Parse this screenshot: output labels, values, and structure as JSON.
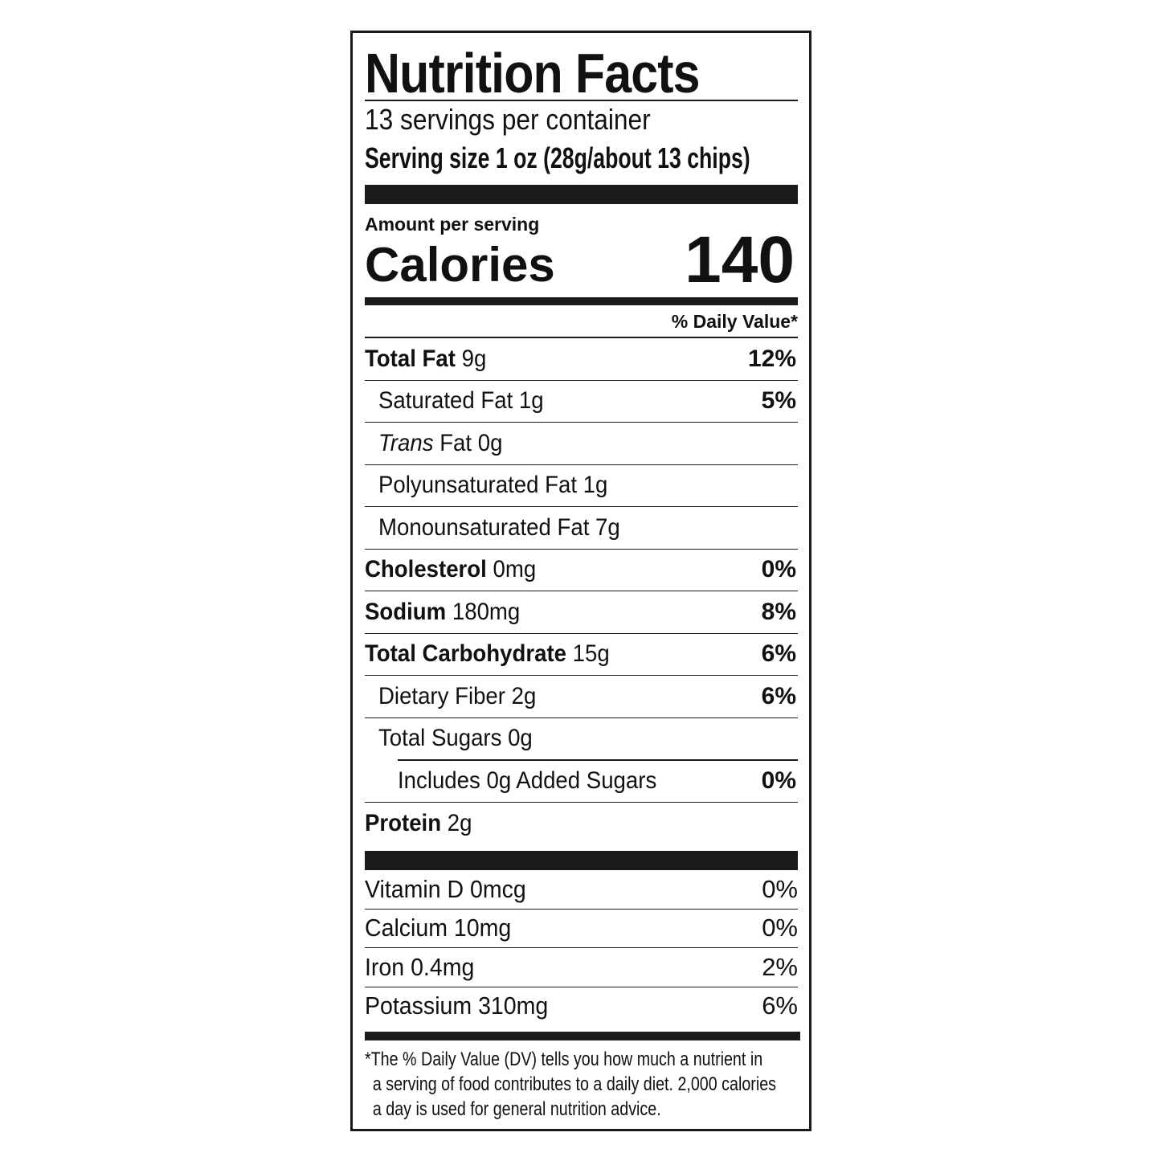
{
  "title": "Nutrition Facts",
  "servings_per_container": "13 servings per container",
  "serving_size": "Serving size 1 oz (28g/about 13 chips)",
  "amount_per_serving": "Amount per serving",
  "calories_label": "Calories",
  "calories_value": "140",
  "daily_value_header": "% Daily Value*",
  "nutrients": [
    {
      "name": "Total Fat",
      "amount": "9g",
      "dv": "12%"
    },
    {
      "name": "Saturated Fat",
      "amount": "1g",
      "dv": "5%"
    },
    {
      "name": "Trans",
      "suffix": "Fat 0g",
      "dv": ""
    },
    {
      "name": "Polyunsaturated Fat 1g",
      "dv": ""
    },
    {
      "name": "Monounsaturated Fat 7g",
      "dv": ""
    },
    {
      "name": "Cholesterol",
      "amount": "0mg",
      "dv": "0%"
    },
    {
      "name": "Sodium",
      "amount": "180mg",
      "dv": "8%"
    },
    {
      "name": "Total Carbohydrate",
      "amount": "15g",
      "dv": "6%"
    },
    {
      "name": "Dietary Fiber 2g",
      "dv": "6%"
    },
    {
      "name": "Total Sugars 0g",
      "dv": ""
    },
    {
      "name": "Includes 0g Added Sugars",
      "dv": "0%"
    },
    {
      "name": "Protein",
      "amount": "2g",
      "dv": ""
    }
  ],
  "vitamins": [
    {
      "name": "Vitamin D 0mcg",
      "dv": "0%"
    },
    {
      "name": "Calcium 10mg",
      "dv": "0%"
    },
    {
      "name": "Iron 0.4mg",
      "dv": "2%"
    },
    {
      "name": "Potassium 310mg",
      "dv": "6%"
    }
  ],
  "footnote": {
    "line1": "*The % Daily Value (DV) tells you how much a nutrient in",
    "line2": "a serving of food contributes to a daily diet. 2,000 calories",
    "line3": "a day is used for general nutrition advice."
  }
}
